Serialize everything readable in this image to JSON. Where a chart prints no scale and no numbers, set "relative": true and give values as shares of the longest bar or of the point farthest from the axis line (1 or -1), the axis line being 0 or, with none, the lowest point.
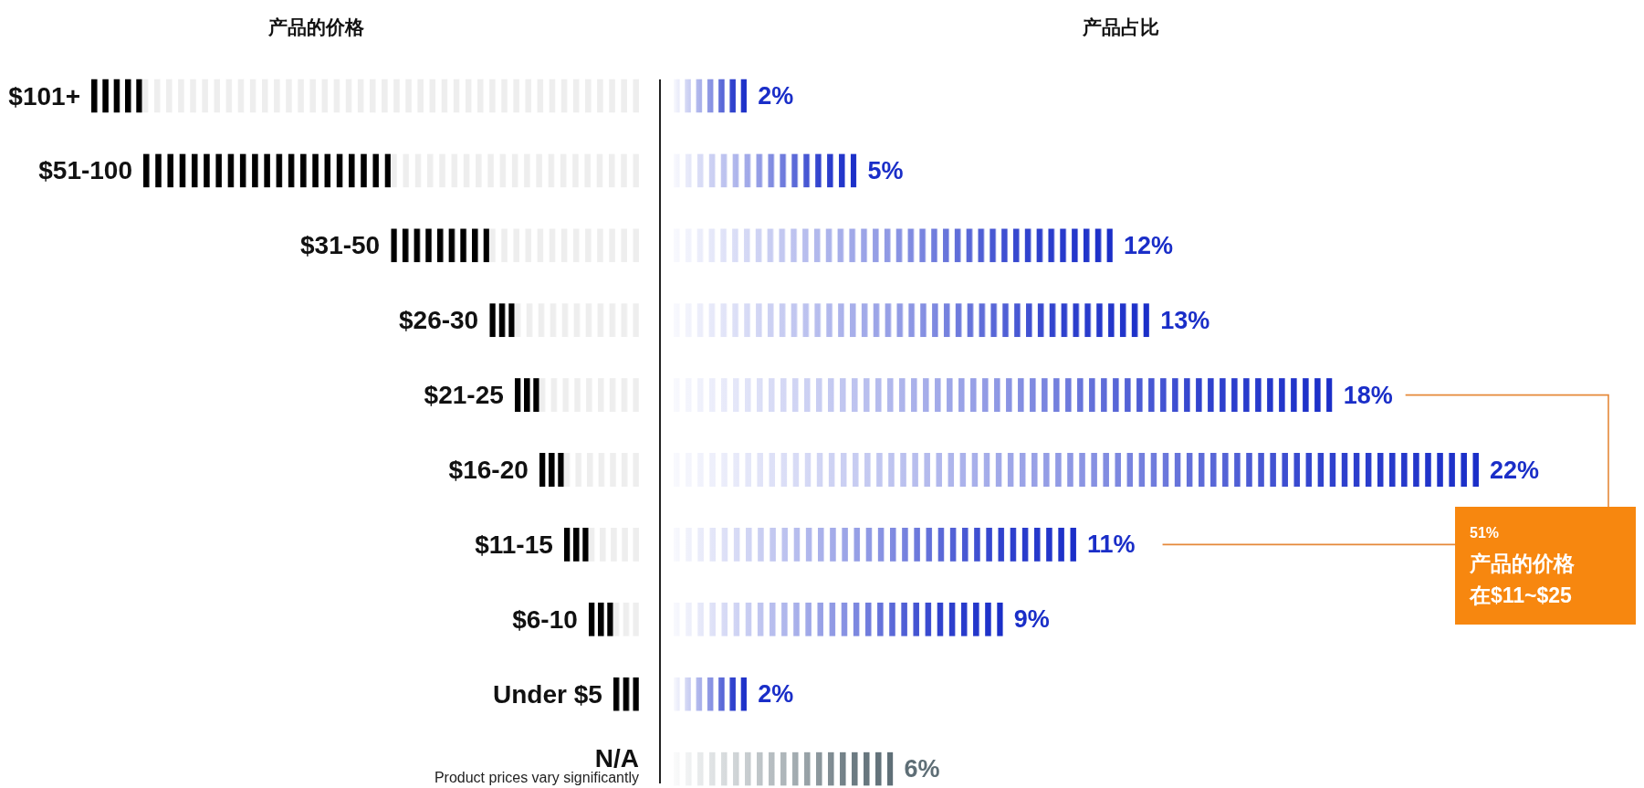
{
  "chart_data": [
    {
      "type": "bar",
      "orientation": "horizontal",
      "stacked": true,
      "relative": true,
      "title": "产品的价格",
      "categories": [
        "$101+",
        "$51-100",
        "$31-50",
        "$26-30",
        "$21-25",
        "$16-20",
        "$11-15",
        "$6-10",
        "Under $5",
        "N/A"
      ],
      "series": [
        {
          "color": "#eeeeee",
          "values": [
            0.907,
            0.453,
            0.273,
            0.227,
            0.182,
            0.137,
            0.092,
            0.047,
            0,
            null
          ]
        },
        {
          "color": "#000000",
          "values": [
            0.093,
            0.452,
            0.18,
            0.046,
            0.045,
            0.045,
            0.045,
            0.045,
            0.047,
            null
          ]
        }
      ],
      "annotations": [
        "Product prices vary significantly"
      ]
    },
    {
      "type": "bar",
      "orientation": "horizontal",
      "title": "产品占比",
      "categories": [
        null,
        null,
        null,
        null,
        null,
        null,
        null,
        null,
        null,
        null
      ],
      "values": [
        2,
        5,
        12,
        13,
        18,
        22,
        11,
        9,
        2,
        6
      ],
      "colors": [
        "#1a2ec8",
        "#1a2ec8",
        "#1a2ec8",
        "#1a2ec8",
        "#1a2ec8",
        "#1a2ec8",
        "#1a2ec8",
        "#1a2ec8",
        "#1a2ec8",
        "#5e6e76"
      ],
      "value_labels": [
        "2%",
        "5%",
        "12%",
        "13%",
        "18%",
        "22%",
        "11%",
        "9%",
        "2%",
        "6%"
      ],
      "annotations": [
        "51%",
        "产品的价格",
        "在$11~$25"
      ]
    }
  ]
}
